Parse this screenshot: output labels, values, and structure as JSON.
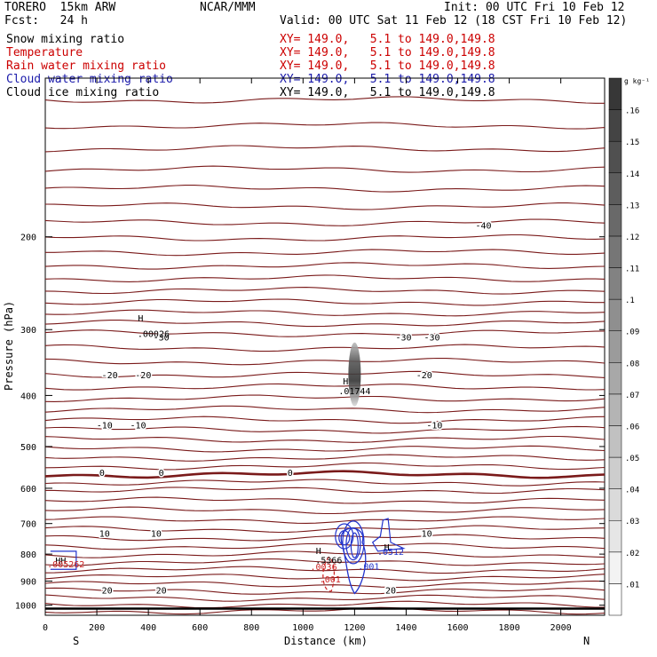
{
  "header": {
    "model": "TORERO  15km ARW",
    "org": "NCAR/MMM",
    "init": "Init: 00 UTC Fri 10 Feb 12",
    "fcst": "Fcst:   24 h",
    "valid": "Valid: 00 UTC Sat 11 Feb 12 (18 CST Fri 10 Feb 12)"
  },
  "fields": [
    {
      "name": "Snow mixing ratio",
      "xy": "",
      "color": "#000000"
    },
    {
      "name": "Temperature",
      "xy": "XY= 149.0,   5.1 to 149.0,149.8",
      "color": "#cc0000"
    },
    {
      "name": "Rain water mixing ratio",
      "xy": "XY= 149.0,   5.1 to 149.0,149.8",
      "color": "#cc0000"
    },
    {
      "name": "Cloud water mixing ratio",
      "xy": "XY= 149.0,   5.1 to 149.0,149.8",
      "color": "#1a1aaa"
    },
    {
      "name": "Cloud ice mixing ratio",
      "xy": "XY= 149.0,   5.1 to 149.0,149.8",
      "color": "#000000"
    }
  ],
  "colors": {
    "temperature": "#7a1a1a",
    "rain": "#cc2222",
    "cloud_water": "#2233cc",
    "snow": "#000000"
  },
  "chart_data": {
    "type": "contour",
    "xlabel": "Distance (km)",
    "ylabel": "Pressure (hPa)",
    "xlim": [
      0,
      2170
    ],
    "ylim": [
      1045,
      100
    ],
    "x_ticks": [
      0,
      200,
      400,
      600,
      800,
      1000,
      1200,
      1400,
      1600,
      1800,
      2000
    ],
    "y_ticks": [
      200,
      300,
      400,
      500,
      600,
      700,
      800,
      900,
      1000
    ],
    "y_scale": "log",
    "left_end": "S",
    "right_end": "N",
    "colorbar": {
      "unit": "g kg⁻¹",
      "ticks": [
        ".01",
        ".02",
        ".03",
        ".04",
        ".05",
        ".06",
        ".07",
        ".08",
        ".09",
        ".1",
        ".11",
        ".12",
        ".13",
        ".14",
        ".15",
        ".16"
      ]
    },
    "temperature_contours": [
      {
        "label": "-40",
        "p": 190,
        "lx": 1700
      },
      {
        "label": "-30",
        "p": 310,
        "lx": [
          450,
          1390,
          1500
        ]
      },
      {
        "label": "-20",
        "p": 365,
        "lx": [
          250,
          380,
          1470
        ]
      },
      {
        "label": "-10",
        "p": 455,
        "lx": [
          230,
          360,
          1510
        ]
      },
      {
        "label": "0",
        "p": 560,
        "lx": [
          220,
          450,
          950
        ]
      },
      {
        "label": "10",
        "p": 730,
        "lx": [
          230,
          430,
          1480
        ]
      },
      {
        "label": "20",
        "p": 935,
        "lx": [
          240,
          450,
          1340
        ]
      }
    ],
    "annotations": [
      {
        "text": "H",
        "x": 370,
        "p": 285
      },
      {
        "text": ".00026",
        "x": 420,
        "p": 305
      },
      {
        "text": "H",
        "x": 1165,
        "p": 375
      },
      {
        "text": ".01744",
        "x": 1200,
        "p": 392
      },
      {
        "text": "H",
        "x": 1325,
        "p": 775
      },
      {
        "text": ".0512",
        "x": 1340,
        "p": 790
      },
      {
        "text": "H",
        "x": 1060,
        "p": 788
      },
      {
        "text": ".5366",
        "x": 1100,
        "p": 820
      },
      {
        "text": ".0036",
        "x": 1080,
        "p": 845
      },
      {
        "text": ".001",
        "x": 1255,
        "p": 842
      },
      {
        "text": ".001",
        "x": 1105,
        "p": 892
      },
      {
        "text": "HH",
        "x": 60,
        "p": 822
      },
      {
        "text": ".005262",
        "x": 80,
        "p": 835
      }
    ]
  }
}
